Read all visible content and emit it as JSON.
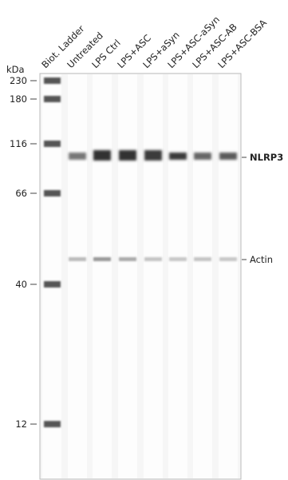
{
  "lanes": [
    "Biot. Ladder",
    "Untreated",
    "LPS Ctrl",
    "LPS+ASC",
    "LPS+aSyn",
    "LPS+ASC-aSyn",
    "LPS+ASC-AB",
    "LPS+ASC-BSA"
  ],
  "axis_unit": "kDa",
  "markers": [
    "230",
    "180",
    "116",
    "66",
    "40",
    "12"
  ],
  "band_labels": [
    "NLRP3",
    "Actin"
  ]
}
